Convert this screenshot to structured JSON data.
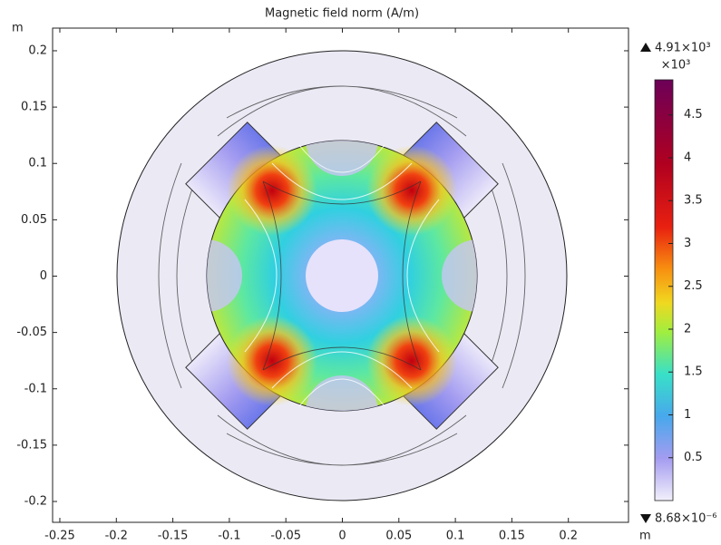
{
  "chart_data": {
    "type": "surface",
    "title": "Magnetic field norm (A/m)",
    "xlabel": "m",
    "ylabel": "m",
    "xlim": [
      -0.2564,
      0.2532
    ],
    "ylim": [
      -0.2185,
      0.2201
    ],
    "xticks": [
      -0.25,
      -0.2,
      -0.15,
      -0.1,
      -0.05,
      0,
      0.05,
      0.1,
      0.15,
      0.2
    ],
    "yticks": [
      -0.2,
      -0.15,
      -0.1,
      -0.05,
      0,
      0.05,
      0.1,
      0.15,
      0.2
    ],
    "colorbar": {
      "unit": "×10³",
      "clim": [
        {
          "value": 8.68e-09,
          "label": "8.68×10⁻⁶"
        },
        {
          "value": 4.91,
          "label": "4.91×10³"
        }
      ],
      "ticks": [
        0.5,
        1,
        1.5,
        2,
        2.5,
        3,
        3.5,
        4,
        4.5
      ]
    }
  }
}
